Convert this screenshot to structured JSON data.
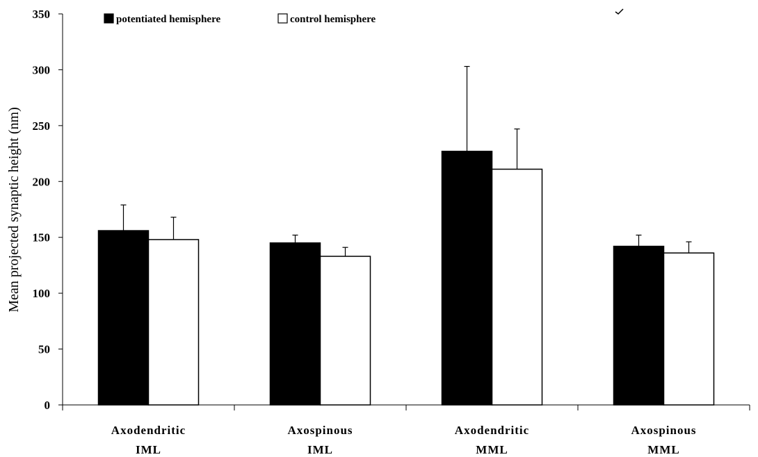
{
  "chart_data": {
    "type": "bar",
    "title": "",
    "xlabel": "",
    "ylabel": "Mean projected synaptic height (nm)",
    "ylim": [
      0,
      350
    ],
    "yticks": [
      0,
      50,
      100,
      150,
      200,
      250,
      300,
      350
    ],
    "grid": false,
    "legend_position": "top-left",
    "categories": [
      [
        "Axodendritic",
        "IML"
      ],
      [
        "Axospinous",
        "IML"
      ],
      [
        "Axodendritic",
        "MML"
      ],
      [
        "Axospinous",
        "MML"
      ]
    ],
    "series": [
      {
        "name": "potentiated hemisphere",
        "color": "#000000",
        "values": [
          156,
          145,
          227,
          142
        ],
        "errors": [
          23,
          7,
          76,
          10
        ]
      },
      {
        "name": "control hemisphere",
        "color": "#ffffff",
        "values": [
          148,
          133,
          211,
          136
        ],
        "errors": [
          20,
          8,
          36,
          10
        ]
      }
    ]
  }
}
